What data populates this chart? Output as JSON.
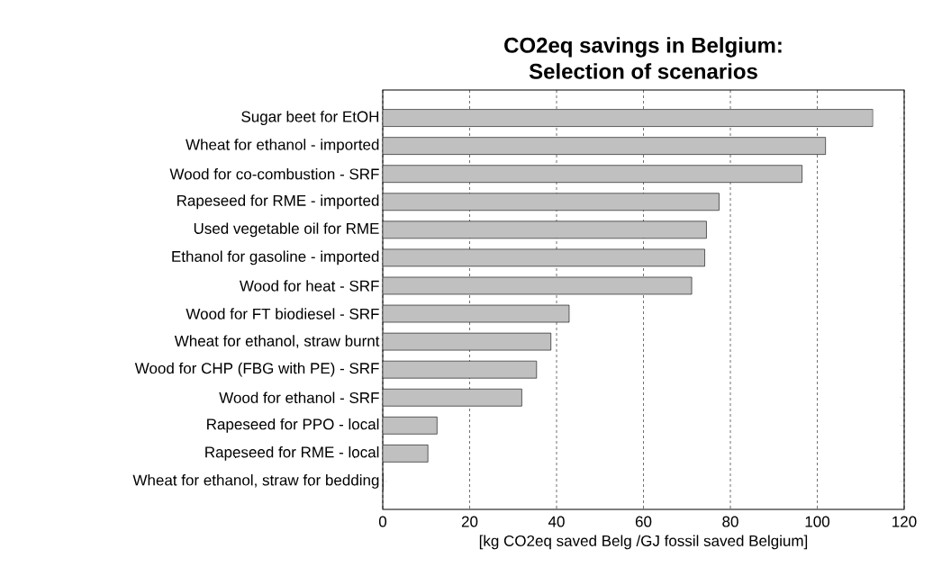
{
  "chart_data": {
    "type": "bar",
    "orientation": "horizontal",
    "title": "CO2eq savings in Belgium:\nSelection of scenarios",
    "xlabel": "[kg CO2eq saved Belg /GJ fossil saved Belgium]",
    "categories": [
      "Sugar beet for EtOH",
      "Wheat for ethanol - imported",
      "Wood for co-combustion - SRF",
      "Rapeseed for RME - imported",
      "Used vegetable oil for RME",
      "Ethanol for gasoline - imported",
      "Wood for heat - SRF",
      "Wood for FT biodiesel - SRF",
      "Wheat for ethanol, straw burnt",
      "Wood  for CHP (FBG with PE) - SRF",
      "Wood for ethanol - SRF",
      "Rapeseed for PPO - local",
      "Rapeseed for RME - local",
      "Wheat for ethanol, straw for bedding"
    ],
    "values": [
      112.8,
      101.9,
      96.5,
      77.4,
      74.5,
      74.1,
      71.1,
      42.9,
      38.7,
      35.4,
      32.0,
      12.5,
      10.4,
      0
    ],
    "color": "#c0c0c0",
    "xlim": [
      0,
      120
    ],
    "xticks": [
      0,
      20,
      40,
      60,
      80,
      100,
      120
    ],
    "grid": "x"
  }
}
